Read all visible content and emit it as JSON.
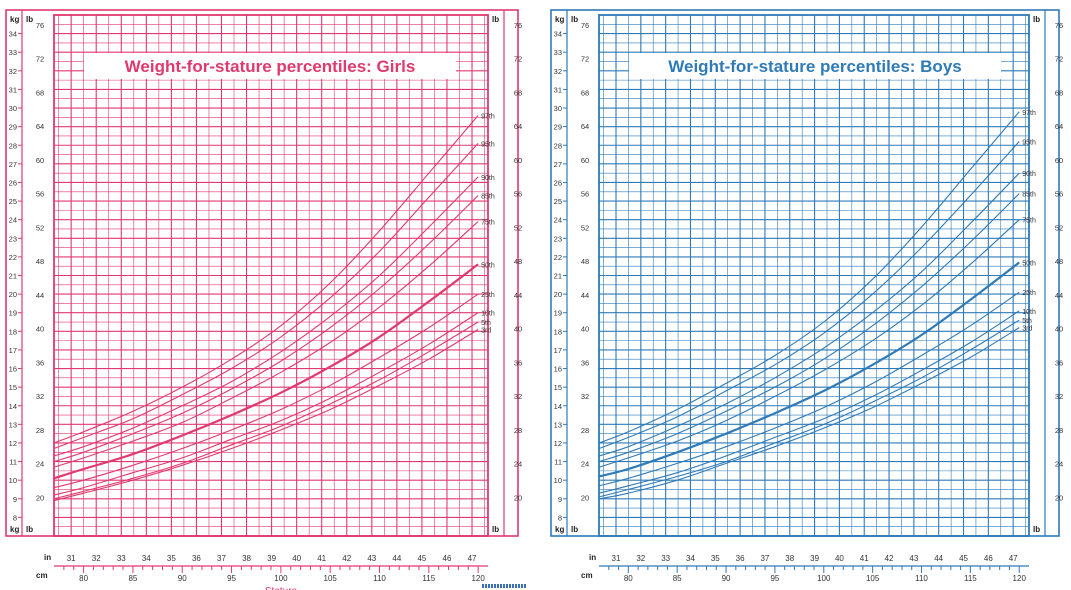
{
  "chart_data": [
    {
      "type": "line",
      "title": "Weight-for-stature percentiles: Girls",
      "xlabel": "Stature",
      "ylabel": "kg",
      "y2label": "lb",
      "x_unit_primary": "cm",
      "x_unit_secondary": "in",
      "y_unit_primary": "kg",
      "y_unit_secondary": "lb",
      "xlim": [
        77,
        121
      ],
      "ylim": [
        7,
        35
      ],
      "x_ticks": [
        80,
        85,
        90,
        95,
        100,
        105,
        110,
        115,
        120
      ],
      "x_ticks_in": [
        31,
        32,
        33,
        34,
        35,
        36,
        37,
        38,
        39,
        40,
        41,
        42,
        43,
        44,
        45,
        46,
        47
      ],
      "y_ticks": [
        8,
        9,
        10,
        11,
        12,
        13,
        14,
        15,
        16,
        17,
        18,
        19,
        20,
        21,
        22,
        23,
        24,
        25,
        26,
        27,
        28,
        29,
        30,
        31,
        32,
        33,
        34
      ],
      "y_ticks_lb": [
        20,
        24,
        28,
        32,
        36,
        40,
        44,
        48,
        52,
        56,
        60,
        64,
        68,
        72,
        76
      ],
      "grid": true,
      "color": "#e0396f",
      "x": [
        77,
        80,
        85,
        90,
        95,
        100,
        105,
        110,
        115,
        120
      ],
      "series": [
        {
          "name": "97th",
          "values": [
            12.0,
            12.6,
            13.7,
            15.0,
            16.5,
            18.3,
            20.6,
            23.4,
            26.5,
            29.6
          ]
        },
        {
          "name": "95th",
          "values": [
            11.7,
            12.3,
            13.3,
            14.6,
            16.0,
            17.7,
            19.8,
            22.3,
            25.2,
            28.1
          ]
        },
        {
          "name": "90th",
          "values": [
            11.3,
            11.8,
            12.8,
            14.0,
            15.3,
            16.9,
            18.8,
            21.0,
            23.6,
            26.3
          ]
        },
        {
          "name": "85th",
          "values": [
            11.0,
            11.5,
            12.5,
            13.6,
            14.9,
            16.4,
            18.2,
            20.3,
            22.7,
            25.3
          ]
        },
        {
          "name": "75th",
          "values": [
            10.7,
            11.2,
            12.1,
            13.1,
            14.4,
            15.8,
            17.4,
            19.3,
            21.5,
            23.9
          ]
        },
        {
          "name": "50th",
          "values": [
            10.1,
            10.6,
            11.4,
            12.4,
            13.5,
            14.7,
            16.1,
            17.7,
            19.6,
            21.6
          ]
        },
        {
          "name": "25th",
          "values": [
            9.6,
            10.0,
            10.8,
            11.7,
            12.7,
            13.8,
            15.1,
            16.6,
            18.2,
            20.0
          ]
        },
        {
          "name": "10th",
          "values": [
            9.2,
            9.6,
            10.4,
            11.2,
            12.2,
            13.2,
            14.4,
            15.8,
            17.3,
            19.0
          ]
        },
        {
          "name": "5th",
          "values": [
            9.0,
            9.4,
            10.1,
            10.9,
            11.9,
            12.9,
            14.1,
            15.4,
            16.9,
            18.5
          ]
        },
        {
          "name": "3rd",
          "values": [
            8.9,
            9.3,
            10.0,
            10.8,
            11.7,
            12.7,
            13.8,
            15.1,
            16.5,
            18.1
          ]
        }
      ]
    },
    {
      "type": "line",
      "title": "Weight-for-stature percentiles: Boys",
      "xlabel": "",
      "ylabel": "kg",
      "y2label": "lb",
      "x_unit_primary": "cm",
      "x_unit_secondary": "in",
      "y_unit_primary": "kg",
      "y_unit_secondary": "lb",
      "xlim": [
        77,
        121
      ],
      "ylim": [
        7,
        35
      ],
      "x_ticks": [
        80,
        85,
        90,
        95,
        100,
        105,
        110,
        115,
        120
      ],
      "x_ticks_in": [
        31,
        32,
        33,
        34,
        35,
        36,
        37,
        38,
        39,
        40,
        41,
        42,
        43,
        44,
        45,
        46,
        47
      ],
      "y_ticks": [
        8,
        9,
        10,
        11,
        12,
        13,
        14,
        15,
        16,
        17,
        18,
        19,
        20,
        21,
        22,
        23,
        24,
        25,
        26,
        27,
        28,
        29,
        30,
        31,
        32,
        33,
        34
      ],
      "y_ticks_lb": [
        20,
        24,
        28,
        32,
        36,
        40,
        44,
        48,
        52,
        56,
        60,
        64,
        68,
        72,
        76
      ],
      "grid": true,
      "color": "#2f7ab8",
      "x": [
        77,
        80,
        85,
        90,
        95,
        100,
        105,
        110,
        115,
        120
      ],
      "series": [
        {
          "name": "97th",
          "values": [
            12.0,
            12.6,
            13.8,
            15.2,
            16.7,
            18.5,
            20.8,
            23.6,
            26.7,
            29.8
          ]
        },
        {
          "name": "95th",
          "values": [
            11.7,
            12.3,
            13.4,
            14.8,
            16.2,
            17.9,
            20.0,
            22.5,
            25.3,
            28.2
          ]
        },
        {
          "name": "90th",
          "values": [
            11.3,
            11.8,
            12.9,
            14.1,
            15.5,
            17.1,
            19.0,
            21.2,
            23.8,
            26.5
          ]
        },
        {
          "name": "85th",
          "values": [
            11.0,
            11.5,
            12.5,
            13.7,
            15.0,
            16.5,
            18.3,
            20.4,
            22.8,
            25.4
          ]
        },
        {
          "name": "75th",
          "values": [
            10.7,
            11.2,
            12.1,
            13.2,
            14.5,
            15.9,
            17.5,
            19.4,
            21.6,
            24.0
          ]
        },
        {
          "name": "50th",
          "values": [
            10.2,
            10.6,
            11.5,
            12.5,
            13.6,
            14.8,
            16.2,
            17.8,
            19.7,
            21.7
          ]
        },
        {
          "name": "25th",
          "values": [
            9.7,
            10.1,
            10.9,
            11.8,
            12.8,
            13.9,
            15.2,
            16.7,
            18.3,
            20.1
          ]
        },
        {
          "name": "10th",
          "values": [
            9.3,
            9.7,
            10.4,
            11.3,
            12.3,
            13.3,
            14.5,
            15.9,
            17.4,
            19.1
          ]
        },
        {
          "name": "5th",
          "values": [
            9.1,
            9.5,
            10.2,
            11.0,
            12.0,
            13.0,
            14.2,
            15.5,
            17.0,
            18.6
          ]
        },
        {
          "name": "3rd",
          "values": [
            9.0,
            9.3,
            10.0,
            10.9,
            11.8,
            12.8,
            13.9,
            15.2,
            16.6,
            18.2
          ]
        }
      ]
    }
  ]
}
